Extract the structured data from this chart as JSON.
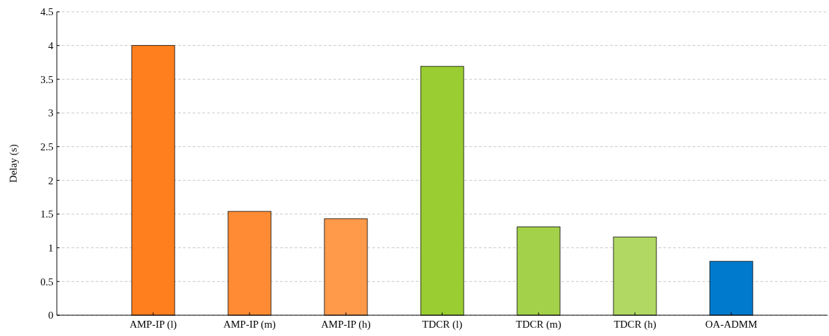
{
  "chart_data": {
    "type": "bar",
    "ylabel": "Delay (s)",
    "categories": [
      "AMP-IP (l)",
      "AMP-IP (m)",
      "AMP-IP (h)",
      "TDCR (l)",
      "TDCR (m)",
      "TDCR (h)",
      "OA-ADMM"
    ],
    "values": [
      4.0,
      1.54,
      1.43,
      3.69,
      1.31,
      1.16,
      0.8
    ],
    "colors": [
      "#ff7f1e",
      "#ff8c34",
      "#ff9a4b",
      "#9acd32",
      "#a3d14a",
      "#b0d862",
      "#007acc"
    ],
    "ylim": [
      0,
      4.5
    ],
    "yticks": [
      0,
      0.5,
      1,
      1.5,
      2,
      2.5,
      3,
      3.5,
      4,
      4.5
    ],
    "grid": "y"
  }
}
